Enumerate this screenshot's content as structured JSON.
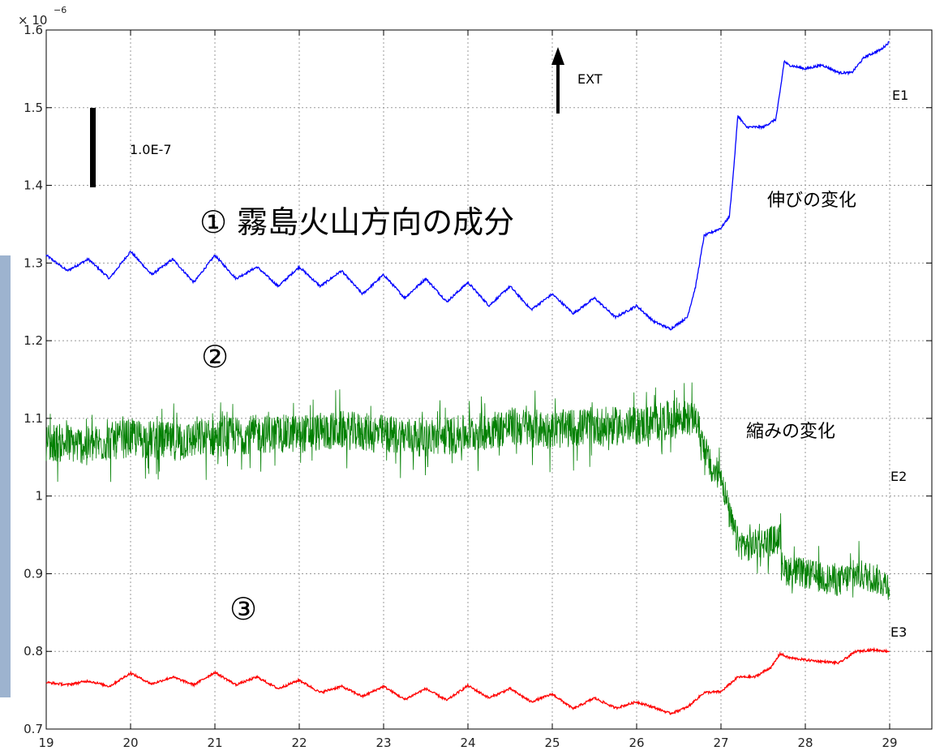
{
  "chart_data": {
    "type": "line",
    "exponent_label": "× 10",
    "exponent_power": "−6",
    "xlim": [
      19,
      29.5
    ],
    "ylim": [
      0.7,
      1.6
    ],
    "x_ticks": [
      19,
      20,
      21,
      22,
      23,
      24,
      25,
      26,
      27,
      28,
      29
    ],
    "y_ticks": [
      "0.7",
      "0.8",
      "0.9",
      "1",
      "1.1",
      "1.2",
      "1.3",
      "1.4",
      "1.5",
      "1.6"
    ],
    "grid": true,
    "colors": {
      "E1": "#0000ff",
      "E2": "#007f00",
      "E3": "#ff0000"
    },
    "series": [
      {
        "name": "E1",
        "x": [
          19.0,
          19.25,
          19.5,
          19.75,
          20.0,
          20.25,
          20.5,
          20.75,
          21.0,
          21.25,
          21.5,
          21.75,
          22.0,
          22.25,
          22.5,
          22.75,
          23.0,
          23.25,
          23.5,
          23.75,
          24.0,
          24.25,
          24.5,
          24.75,
          25.0,
          25.25,
          25.5,
          25.75,
          26.0,
          26.2,
          26.4,
          26.6,
          26.7,
          26.8,
          26.9,
          27.0,
          27.1,
          27.15,
          27.2,
          27.3,
          27.5,
          27.65,
          27.7,
          27.75,
          27.8,
          28.0,
          28.2,
          28.4,
          28.55,
          28.7,
          28.9,
          29.0
        ],
        "values": [
          1.31,
          1.29,
          1.305,
          1.28,
          1.315,
          1.285,
          1.305,
          1.275,
          1.31,
          1.28,
          1.295,
          1.27,
          1.295,
          1.27,
          1.29,
          1.26,
          1.285,
          1.255,
          1.28,
          1.25,
          1.275,
          1.245,
          1.27,
          1.24,
          1.26,
          1.235,
          1.255,
          1.23,
          1.245,
          1.225,
          1.215,
          1.23,
          1.27,
          1.335,
          1.34,
          1.345,
          1.36,
          1.42,
          1.49,
          1.475,
          1.475,
          1.485,
          1.52,
          1.56,
          1.555,
          1.55,
          1.555,
          1.545,
          1.545,
          1.565,
          1.575,
          1.585
        ]
      },
      {
        "name": "E2",
        "x": [
          19.0,
          19.5,
          20.0,
          20.5,
          21.0,
          21.5,
          22.0,
          22.5,
          23.0,
          23.5,
          24.0,
          24.5,
          25.0,
          25.5,
          26.0,
          26.5,
          26.7,
          26.8,
          26.9,
          27.0,
          27.1,
          27.2,
          27.3,
          27.5,
          27.7,
          27.75,
          28.0,
          28.2,
          28.4,
          28.6,
          28.8,
          29.0
        ],
        "values": [
          1.07,
          1.065,
          1.075,
          1.07,
          1.075,
          1.08,
          1.08,
          1.085,
          1.08,
          1.075,
          1.08,
          1.09,
          1.085,
          1.09,
          1.09,
          1.1,
          1.1,
          1.065,
          1.03,
          1.03,
          0.975,
          0.94,
          0.935,
          0.94,
          0.945,
          0.905,
          0.9,
          0.895,
          0.89,
          0.9,
          0.895,
          0.885
        ],
        "noise": [
          0.05,
          0.05,
          0.05,
          0.05,
          0.05,
          0.05,
          0.05,
          0.05,
          0.05,
          0.05,
          0.05,
          0.05,
          0.05,
          0.05,
          0.05,
          0.05,
          0.04,
          0.04,
          0.04,
          0.04,
          0.04,
          0.04,
          0.04,
          0.04,
          0.04,
          0.04,
          0.04,
          0.04,
          0.04,
          0.04,
          0.04,
          0.04
        ]
      },
      {
        "name": "E3",
        "x": [
          19.0,
          19.25,
          19.5,
          19.75,
          20.0,
          20.25,
          20.5,
          20.75,
          21.0,
          21.25,
          21.5,
          21.75,
          22.0,
          22.25,
          22.5,
          22.75,
          23.0,
          23.25,
          23.5,
          23.75,
          24.0,
          24.25,
          24.5,
          24.75,
          25.0,
          25.25,
          25.5,
          25.75,
          26.0,
          26.2,
          26.4,
          26.6,
          26.8,
          27.0,
          27.2,
          27.4,
          27.6,
          27.7,
          27.8,
          28.0,
          28.2,
          28.4,
          28.6,
          28.8,
          29.0
        ],
        "values": [
          0.76,
          0.757,
          0.762,
          0.755,
          0.772,
          0.758,
          0.767,
          0.757,
          0.773,
          0.757,
          0.767,
          0.752,
          0.763,
          0.747,
          0.755,
          0.742,
          0.755,
          0.738,
          0.752,
          0.737,
          0.756,
          0.74,
          0.752,
          0.735,
          0.745,
          0.726,
          0.74,
          0.727,
          0.735,
          0.728,
          0.72,
          0.728,
          0.747,
          0.748,
          0.767,
          0.767,
          0.78,
          0.797,
          0.792,
          0.789,
          0.787,
          0.785,
          0.8,
          0.802,
          0.8
        ]
      }
    ],
    "annotations": {
      "ext": "EXT",
      "scale": "1.0E-7",
      "title_jp": "① 霧島火山方向の成分",
      "stretch": "伸びの変化",
      "shrink": "縮みの変化",
      "marker2": "②",
      "marker3": "③"
    }
  }
}
